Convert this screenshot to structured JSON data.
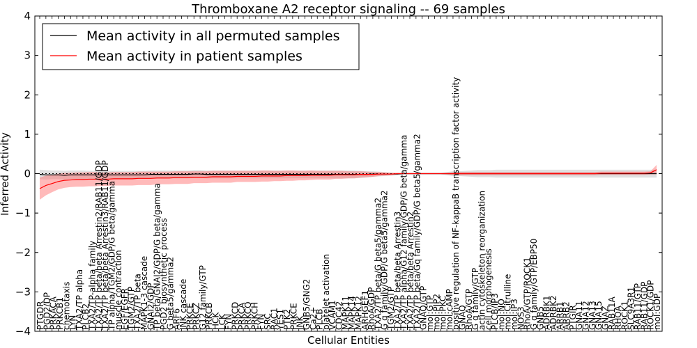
{
  "chart_data": {
    "type": "line",
    "title": "Thromboxane A2 receptor signaling -- 69 samples",
    "xlabel": "Cellular Entities",
    "ylabel": "Inferred Activity",
    "ylim": [
      -4,
      4
    ],
    "yticks": [
      -4,
      -3,
      -2,
      -1,
      0,
      1,
      2,
      3,
      4
    ],
    "ytick_labels": [
      "−4",
      "−3",
      "−2",
      "−1",
      "0",
      "1",
      "2",
      "3",
      "4"
    ],
    "grid": false,
    "legend_position": "top-left",
    "colors": {
      "permuted": "#000000",
      "permuted_band": "#bbbbbb",
      "patient": "#ff0000",
      "patient_band": "#ff6666"
    },
    "categories": [
      "PTGDR",
      "PGD2/DP",
      "PRKACA",
      "PRKCB1",
      "chemotaxis",
      "LYN",
      "TXA2/TP alpha",
      "PLCB2",
      "TXA2/TP-alpha family",
      "TXA2/TP beta/beta Arrestin2/RAB11/GDP",
      "TXA2/TP beta/beta Arrestin3/RAB11/GDP",
      "TP alpha/TGM2/GDP/G beta/gamma",
      "muscle contraction",
      "EGF/EGFR",
      "TGM2/GTP",
      "TXA2/TP beta",
      "MAPK1-3 cascade",
      "GNAI2/GDP",
      "TP beta/GNAI2/GDP/G beta/gamma",
      "PGD2",
      "PGD2 biosynthetic process",
      "G beta5/gamma2",
      "ARF6",
      "JNK cascade",
      "PRKCE",
      "PRKCB",
      "PRKCZ",
      "G12 family/GTP",
      "FYN",
      "PRKCH",
      "LCK",
      "GNB5",
      "PRKCD",
      "PRKCQ",
      "PRKCA",
      "PRKD",
      "FYN",
      "SRC",
      "RAC1",
      "YES1",
      "PTK2",
      "PRKCE",
      "JNK",
      "GNB5/GNG2",
      "Ca2+",
      "PLCB",
      "platelet activation",
      "VCAM1",
      "CDC42",
      "MAPK11",
      "MAPK14",
      "MAPK12",
      "ARHGEF1",
      "RhoA/GDP",
      "TXA2/TP beta/G beta5/gamma2",
      "G q family/GDP/G beta5/gamma2",
      "TGM2/GTP",
      "TXA2/TP beta",
      "TXA2/TP beta/beta Arrestin3",
      "TXA2/TP alpha/G12 family/GDP/G beta/gamma",
      "TXA2/TP beta/beta Arrestin2",
      "TXA2/TP beta/Gq family/GDP/G beta5/gamma2",
      "GNAQ/GTP",
      "mol:GTP",
      "mol:PIP2",
      "mol:PKC",
      "mol:cAMP",
      "mol:GDP",
      "positive regulation of NF-kappaB transcription factor activity",
      "RhoA",
      "GNAQ",
      "RhoA/GTP",
      "G q family/GTP",
      "actin cytoskeleton reorganization",
      "cell morphogenesis",
      "PLCB/IP3",
      "mol:NO",
      "mol:Citrulline",
      "mol:IP3",
      "NOS3",
      "RhoA/GTP/ROCK1",
      "G q family/GTP/EBP50",
      "GNB5",
      "ADRBK1",
      "ADRBK2",
      "ARRB1",
      "ARRB2",
      "PTGIR",
      "GNA11",
      "GNA12",
      "GNA13",
      "GNA15",
      "GNAZ",
      "RAB11A",
      "RHOA",
      "ROCK1",
      "SLC9A3R1",
      "RAB11/GTP",
      "RAB11/GDP",
      "ROCK1/GDP",
      "mol:GDP"
    ],
    "visible_labels": [
      "PTGDR",
      "PGD2/DP",
      "PRKACA",
      "PRKCB1",
      "chemotaxis",
      "LYN",
      "TXA2/TP alpha",
      "PLCB2",
      "TXA2/TP-alpha family",
      "TXA2/TP beta/beta Arrestin2/RAB11/GDP",
      "TXA2/TP beta/beta Arrestin3/RAB11/GDP",
      "TP alpha/TGM2/GDP/G beta/gamma",
      "muscle contraction",
      "EGF/EGFR",
      "TGM2/GTP",
      "TXA2/TP beta",
      "MAPK1-3 cascade",
      "GNAI2/GDP",
      "TP beta/GNAI2/GDP/G beta/gamma",
      "PGD2 biosynthetic process",
      "G beta5/gamma2",
      "ARF6",
      "JNK cascade",
      "PRKCE",
      "PRKCZ",
      "G12 family/GTP",
      "PRKCB",
      "HCK",
      "LCK",
      "FYN",
      "PRKCD",
      "PRKCA",
      "PRKCQ",
      "PRKCH",
      "FYN",
      "SRC",
      "RAC1",
      "YES1",
      "PTK2",
      "PRKCE",
      "JNK",
      "GNB5/GNG2",
      "Ca2+",
      "PLCB",
      "platelet activation",
      "VCAM1",
      "CDC42",
      "MAPK11",
      "MAPK14",
      "MAPK12",
      "ARHGEF1",
      "RhoA/GDP",
      "TXA2/TP beta/G beta5/gamma2",
      "G q family/GDP/G beta5/gamma2",
      "TGM2/GTP",
      "TXA2/TP beta/beta Arrestin3",
      "TXA2/TP alpha/G12 family/GDP/G beta/gamma",
      "TXA2/TP beta/beta Arrestin2",
      "TXA2/TP beta/Gq family/GDP/G beta5/gamma2",
      "GNAQ/GTP",
      "mol:GTP",
      "mol:PIP2",
      "mol:PKC",
      "mol:cAMP",
      "positive regulation of NF-kappaB transcription factor activity",
      "GNAQ",
      "RhoA/GTP",
      "G q family/GTP",
      "actin cytoskeleton reorganization",
      "cell morphogenesis",
      "PLCB/IP3",
      "mol:NO",
      "mol:Citrulline",
      "mol:IP3",
      "NOS3",
      "RhoA/GTP/ROCK1",
      "G q family/GTP/EBP50",
      "GNB5",
      "ADRBK1",
      "ADRBK2",
      "ARRB1",
      "ARRB2",
      "PTGIR",
      "GNA11",
      "GNA12",
      "GNA13",
      "GNA15",
      "GNAZ",
      "RAB11A",
      "RHOA",
      "ROCK1",
      "SLC9A3R1",
      "RAB11/GTP",
      "RAB11/GDP",
      "ROCK1/GDP",
      "mol:GDP"
    ],
    "series": [
      {
        "name": "Mean activity in all permuted samples",
        "color": "#000000",
        "values": [
          -0.02,
          -0.03,
          -0.03,
          -0.03,
          -0.04,
          -0.03,
          -0.03,
          -0.03,
          -0.03,
          -0.03,
          -0.03,
          -0.03,
          -0.03,
          -0.03,
          -0.03,
          -0.03,
          -0.03,
          -0.03,
          -0.02,
          -0.02,
          -0.02,
          -0.02,
          -0.02,
          -0.02,
          -0.02,
          -0.01,
          -0.01,
          -0.02,
          -0.02,
          -0.02,
          -0.02,
          -0.02,
          -0.02,
          -0.02,
          -0.02,
          -0.02,
          -0.02,
          -0.02,
          -0.02,
          -0.02,
          -0.02,
          -0.02,
          -0.02,
          -0.02,
          -0.02,
          -0.02,
          -0.02,
          -0.02,
          -0.02,
          -0.02,
          -0.02,
          -0.02,
          -0.02,
          -0.02,
          -0.01,
          -0.01,
          -0.01,
          -0.01,
          -0.01,
          0.0,
          0.0,
          0.0,
          0.0,
          0.0,
          0.0,
          0.0,
          0.0,
          0.0,
          0.0,
          0.0,
          0.0,
          0.0,
          0.0,
          0.0,
          0.0,
          0.0,
          0.0,
          0.0,
          0.0,
          0.0,
          0.0,
          0.0,
          0.0,
          0.0,
          0.0,
          0.0,
          0.0,
          0.0,
          0.0,
          0.0,
          0.0,
          0.0,
          0.0,
          0.0,
          0.0,
          0.0,
          0.0,
          0.0,
          0.0,
          0.0,
          0.0
        ],
        "band": [
          0.12,
          0.12,
          0.11,
          0.11,
          0.11,
          0.11,
          0.11,
          0.11,
          0.1,
          0.1,
          0.1,
          0.1,
          0.1,
          0.1,
          0.1,
          0.1,
          0.1,
          0.1,
          0.1,
          0.1,
          0.1,
          0.1,
          0.1,
          0.1,
          0.1,
          0.1,
          0.1,
          0.1,
          0.1,
          0.1,
          0.1,
          0.1,
          0.1,
          0.1,
          0.1,
          0.1,
          0.1,
          0.1,
          0.1,
          0.1,
          0.1,
          0.1,
          0.1,
          0.1,
          0.1,
          0.1,
          0.1,
          0.1,
          0.1,
          0.1,
          0.1,
          0.1,
          0.09,
          0.08,
          0.07,
          0.06,
          0.05,
          0.04,
          0.03,
          0.02,
          0.02,
          0.02,
          0.02,
          0.02,
          0.02,
          0.02,
          0.04,
          0.06,
          0.06,
          0.07,
          0.08,
          0.09,
          0.09,
          0.09,
          0.1,
          0.1,
          0.1,
          0.1,
          0.1,
          0.1,
          0.1,
          0.1,
          0.1,
          0.1,
          0.1,
          0.1,
          0.1,
          0.1,
          0.1,
          0.1,
          0.1,
          0.1,
          0.1,
          0.1,
          0.1,
          0.1,
          0.1,
          0.1,
          0.1,
          0.1,
          0.1
        ]
      },
      {
        "name": "Mean activity in patient samples",
        "color": "#ff0000",
        "values": [
          -0.38,
          -0.3,
          -0.25,
          -0.2,
          -0.17,
          -0.16,
          -0.15,
          -0.15,
          -0.14,
          -0.14,
          -0.14,
          -0.14,
          -0.13,
          -0.13,
          -0.13,
          -0.13,
          -0.12,
          -0.12,
          -0.12,
          -0.11,
          -0.11,
          -0.11,
          -0.1,
          -0.1,
          -0.1,
          -0.09,
          -0.09,
          -0.09,
          -0.08,
          -0.08,
          -0.08,
          -0.08,
          -0.07,
          -0.07,
          -0.07,
          -0.07,
          -0.06,
          -0.06,
          -0.06,
          -0.06,
          -0.05,
          -0.05,
          -0.05,
          -0.05,
          -0.04,
          -0.04,
          -0.04,
          -0.04,
          -0.03,
          -0.03,
          -0.03,
          -0.03,
          -0.02,
          -0.02,
          -0.02,
          -0.01,
          -0.01,
          -0.01,
          0.0,
          0.0,
          0.0,
          0.0,
          0.0,
          0.0,
          0.0,
          0.0,
          0.0,
          0.0,
          0.0,
          0.0,
          0.0,
          0.0,
          0.0,
          0.0,
          0.0,
          0.0,
          0.0,
          0.0,
          0.0,
          0.0,
          0.0,
          0.0,
          0.0,
          0.0,
          0.0,
          0.0,
          0.0,
          0.0,
          0.0,
          0.0,
          0.0,
          0.01,
          0.01,
          0.01,
          0.01,
          0.01,
          0.01,
          0.01,
          0.01,
          0.02,
          0.1
        ],
        "band": [
          0.28,
          0.25,
          0.22,
          0.2,
          0.19,
          0.18,
          0.18,
          0.18,
          0.18,
          0.18,
          0.17,
          0.17,
          0.17,
          0.17,
          0.17,
          0.17,
          0.17,
          0.17,
          0.17,
          0.16,
          0.16,
          0.16,
          0.16,
          0.16,
          0.16,
          0.15,
          0.15,
          0.15,
          0.15,
          0.15,
          0.15,
          0.15,
          0.14,
          0.14,
          0.14,
          0.14,
          0.14,
          0.14,
          0.13,
          0.13,
          0.13,
          0.13,
          0.12,
          0.12,
          0.12,
          0.11,
          0.11,
          0.11,
          0.1,
          0.1,
          0.09,
          0.09,
          0.08,
          0.07,
          0.06,
          0.05,
          0.04,
          0.03,
          0.02,
          0.01,
          0.01,
          0.01,
          0.01,
          0.01,
          0.01,
          0.01,
          0.02,
          0.03,
          0.04,
          0.04,
          0.04,
          0.04,
          0.04,
          0.04,
          0.04,
          0.04,
          0.04,
          0.04,
          0.04,
          0.04,
          0.04,
          0.04,
          0.04,
          0.04,
          0.04,
          0.04,
          0.04,
          0.04,
          0.04,
          0.04,
          0.04,
          0.04,
          0.04,
          0.04,
          0.04,
          0.04,
          0.04,
          0.04,
          0.04,
          0.04,
          0.12
        ]
      }
    ]
  }
}
